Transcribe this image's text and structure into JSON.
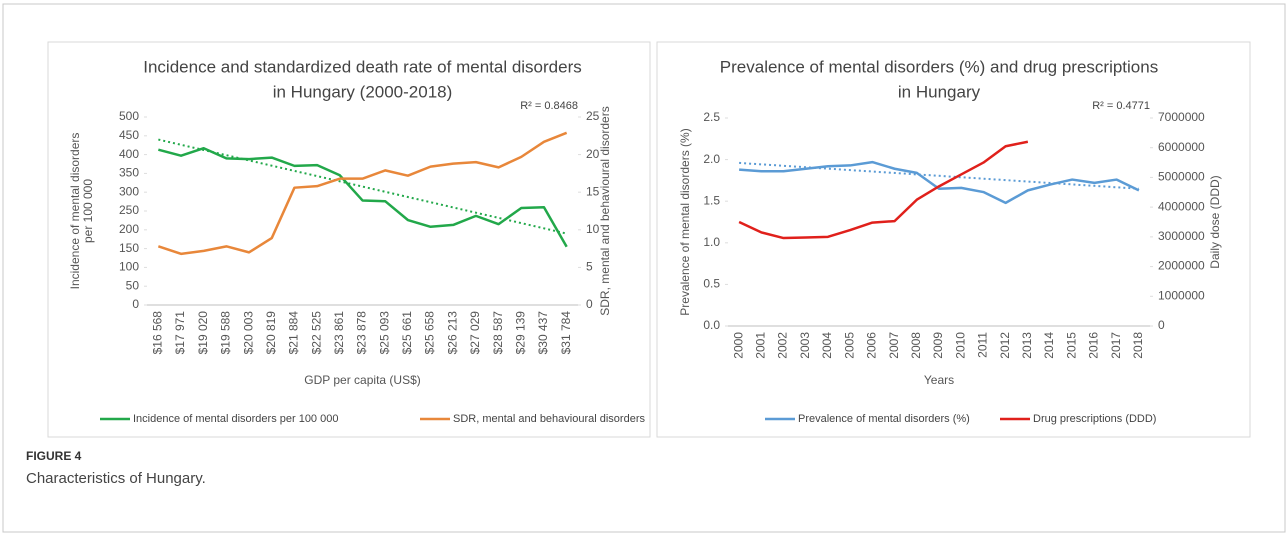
{
  "chart_data": [
    {
      "type": "line",
      "title": [
        "Incidence and standardized death rate of mental disorders",
        "in Hungary (2000-2018)"
      ],
      "annotation": "R² = 0.8468",
      "ylabel": [
        "Incidence of mental disorders",
        "per 100 000"
      ],
      "y2label": "SDR, mental and behavioural disorders",
      "xlabel": "GDP per capita (US$)",
      "categories": [
        "$16 568",
        "$17 971",
        "$19 020",
        "$19 588",
        "$20 003",
        "$20 819",
        "$21 884",
        "$22 525",
        "$23 861",
        "$23 878",
        "$25 093",
        "$25 661",
        "$25 658",
        "$26 213",
        "$27 029",
        "$28 587",
        "$29 139",
        "$30 437",
        "$31 784"
      ],
      "series": [
        {
          "name": "Incidence of mental disorders per 100 000",
          "color": "#22a84a",
          "values": [
            413,
            397,
            417,
            390,
            388,
            392,
            370,
            372,
            345,
            278,
            276,
            226,
            208,
            213,
            237,
            215,
            258,
            260,
            155
          ]
        },
        {
          "name": "SDR, mental and behavioural disorders",
          "color": "#e8873a",
          "axis": "y2",
          "values": [
            7.8,
            6.8,
            7.2,
            7.8,
            7.0,
            8.9,
            15.6,
            15.8,
            16.8,
            16.8,
            17.9,
            17.2,
            18.4,
            18.8,
            19.0,
            18.3,
            19.7,
            21.7,
            22.9
          ]
        }
      ],
      "trend": {
        "color": "#22a84a",
        "values": [
          440,
          190
        ]
      },
      "ylim": [
        0,
        500
      ],
      "yticks": [
        0,
        50,
        100,
        150,
        200,
        250,
        300,
        350,
        400,
        450,
        500
      ],
      "y2lim": [
        0,
        25
      ],
      "y2ticks": [
        0,
        5,
        10,
        15,
        20,
        25
      ]
    },
    {
      "type": "line",
      "title": [
        "Prevalence of mental disorders (%) and drug prescriptions",
        "in Hungary"
      ],
      "annotation": "R² = 0.4771",
      "ylabel": [
        "Prevalence of mental disorders (%)"
      ],
      "y2label": "Daily dose (DDD)",
      "xlabel": "Years",
      "categories": [
        "2000",
        "2001",
        "2002",
        "2003",
        "2004",
        "2005",
        "2006",
        "2007",
        "2008",
        "2009",
        "2010",
        "2011",
        "2012",
        "2013",
        "2014",
        "2015",
        "2016",
        "2017",
        "2018"
      ],
      "series": [
        {
          "name": "Prevalence of mental disorders (%)",
          "color": "#5b9bd5",
          "values": [
            1.88,
            1.86,
            1.86,
            1.89,
            1.92,
            1.93,
            1.97,
            1.89,
            1.84,
            1.65,
            1.66,
            1.61,
            1.48,
            1.63,
            1.7,
            1.76,
            1.72,
            1.76,
            1.63
          ]
        },
        {
          "name": "Drug prescriptions (DDD)",
          "color": "#e0201b",
          "axis": "y2",
          "values": [
            3500000,
            3150000,
            2960000,
            2980000,
            3000000,
            3230000,
            3480000,
            3530000,
            4250000,
            4700000,
            5100000,
            5500000,
            6050000,
            6200000,
            null,
            null,
            null,
            null,
            null
          ]
        }
      ],
      "trend": {
        "color": "#5b9bd5",
        "values": [
          1.96,
          1.65
        ]
      },
      "ylim": [
        0,
        2.5
      ],
      "yticks": [
        {
          "value": 0,
          "label": "0.0"
        },
        0.5,
        {
          "value": 1,
          "label": "1.0"
        },
        1.5,
        {
          "value": 2,
          "label": "2.0"
        },
        2.5
      ],
      "y2lim": [
        0,
        7000000
      ],
      "y2ticks": [
        0,
        1000000,
        2000000,
        3000000,
        4000000,
        5000000,
        6000000,
        7000000
      ]
    }
  ],
  "figure": {
    "label": "FIGURE 4",
    "caption": "Characteristics of Hungary."
  }
}
